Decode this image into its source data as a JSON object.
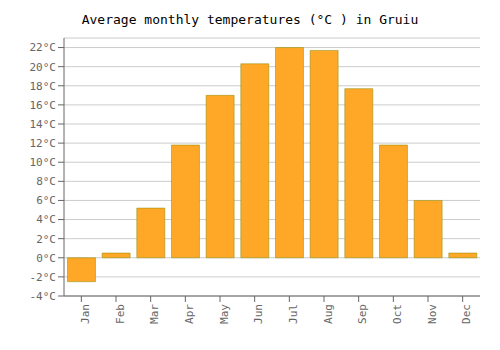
{
  "chart_data": {
    "type": "bar",
    "title": "Average monthly temperatures (°C ) in Gruiu",
    "categories": [
      "Jan",
      "Feb",
      "Mar",
      "Apr",
      "May",
      "Jun",
      "Jul",
      "Aug",
      "Sep",
      "Oct",
      "Nov",
      "Dec"
    ],
    "values": [
      -2.5,
      0.5,
      5.2,
      11.8,
      17.0,
      20.3,
      22.0,
      21.7,
      17.7,
      11.8,
      6.0,
      0.5
    ],
    "color": "#FFA726",
    "ylim": [
      -4,
      23
    ],
    "yticks": [
      {
        "value": -4,
        "label": "-4°C"
      },
      {
        "value": -2,
        "label": "-2°C"
      },
      {
        "value": 0,
        "label": "0°C"
      },
      {
        "value": 2,
        "label": "2°C"
      },
      {
        "value": 4,
        "label": "4°C"
      },
      {
        "value": 6,
        "label": "6°C"
      },
      {
        "value": 8,
        "label": "8°C"
      },
      {
        "value": 10,
        "label": "10°C"
      },
      {
        "value": 12,
        "label": "12°C"
      },
      {
        "value": 14,
        "label": "14°C"
      },
      {
        "value": 16,
        "label": "16°C"
      },
      {
        "value": 18,
        "label": "18°C"
      },
      {
        "value": 20,
        "label": "20°C"
      },
      {
        "value": 22,
        "label": "22°C"
      }
    ],
    "grid": true
  }
}
